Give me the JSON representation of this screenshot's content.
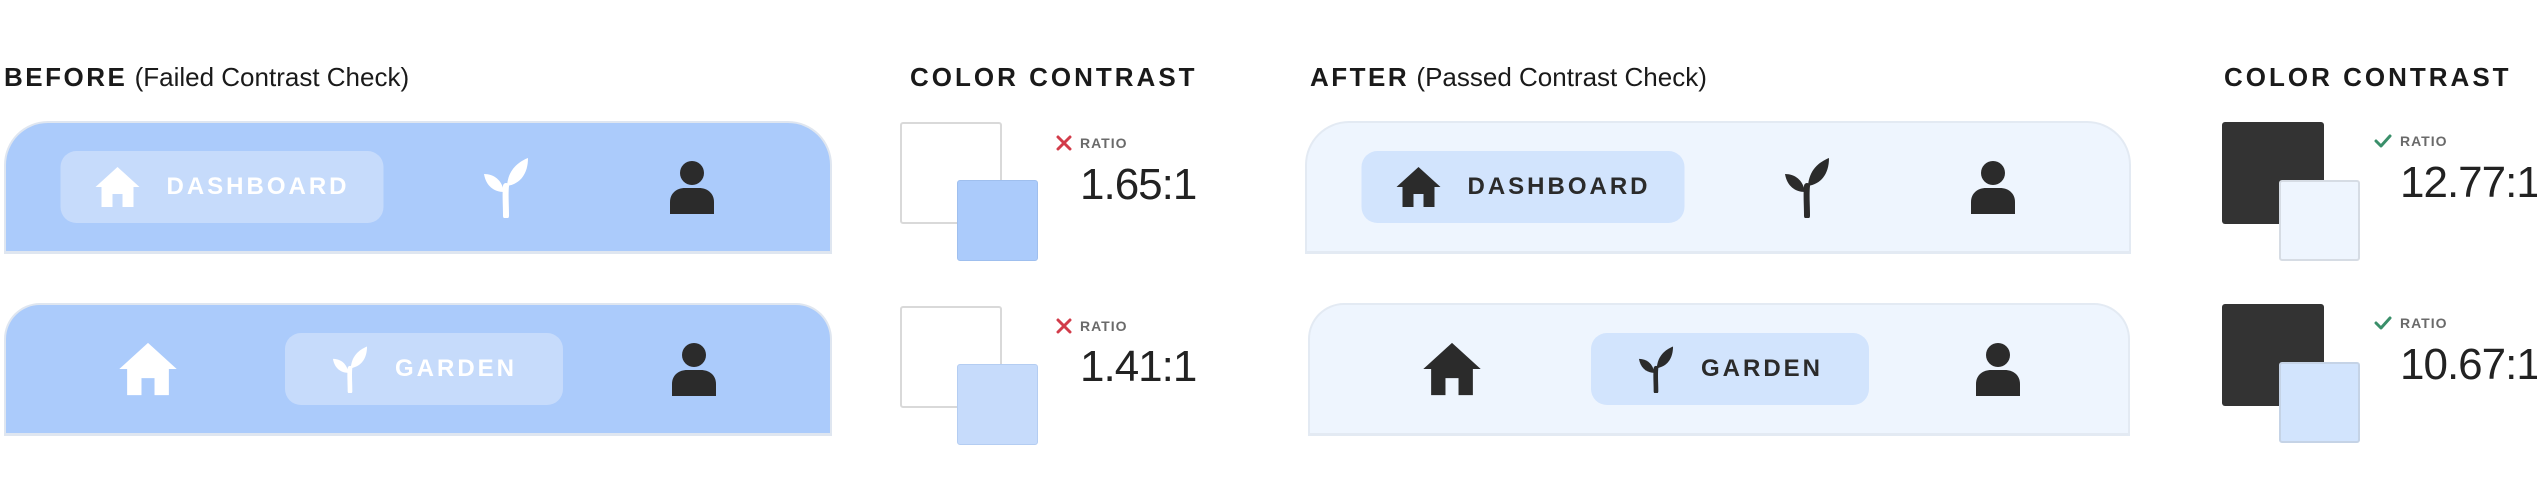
{
  "before": {
    "heading_strong": "BEFORE",
    "heading_light": "(Failed Contrast Check)",
    "color_contrast_title": "COLOR CONTRAST",
    "rows": [
      {
        "active_tab": "DASHBOARD",
        "status_label": "RATIO",
        "status_icon": "x-icon",
        "ratio": "1.65:1",
        "back_color": "#ffffff",
        "front_color": "#abcbfb"
      },
      {
        "active_tab": "GARDEN",
        "status_label": "RATIO",
        "status_icon": "x-icon",
        "ratio": "1.41:1",
        "back_color": "#ffffff",
        "front_color": "#c6dbfb"
      }
    ],
    "bar_color": "#abcbfb",
    "pill_color": "#c6dbfb",
    "icon_color": "#ffffff"
  },
  "after": {
    "heading_strong": "AFTER",
    "heading_light": "(Passed Contrast Check)",
    "color_contrast_title": "COLOR CONTRAST",
    "rows": [
      {
        "active_tab": "DASHBOARD",
        "status_label": "RATIO",
        "status_icon": "check-icon",
        "ratio": "12.77:1",
        "back_color": "#333333",
        "front_color": "#eef5fe"
      },
      {
        "active_tab": "GARDEN",
        "status_label": "RATIO",
        "status_icon": "check-icon",
        "ratio": "10.67:1",
        "back_color": "#333333",
        "front_color": "#d2e4fd"
      }
    ],
    "bar_color": "#eef5fe",
    "pill_color": "#d2e4fd",
    "icon_color": "#2b2b2b"
  },
  "colors": {
    "fail": "#d23c4a",
    "pass": "#3a8f6a"
  },
  "icons": [
    "home-icon",
    "sprout-icon",
    "user-icon"
  ]
}
